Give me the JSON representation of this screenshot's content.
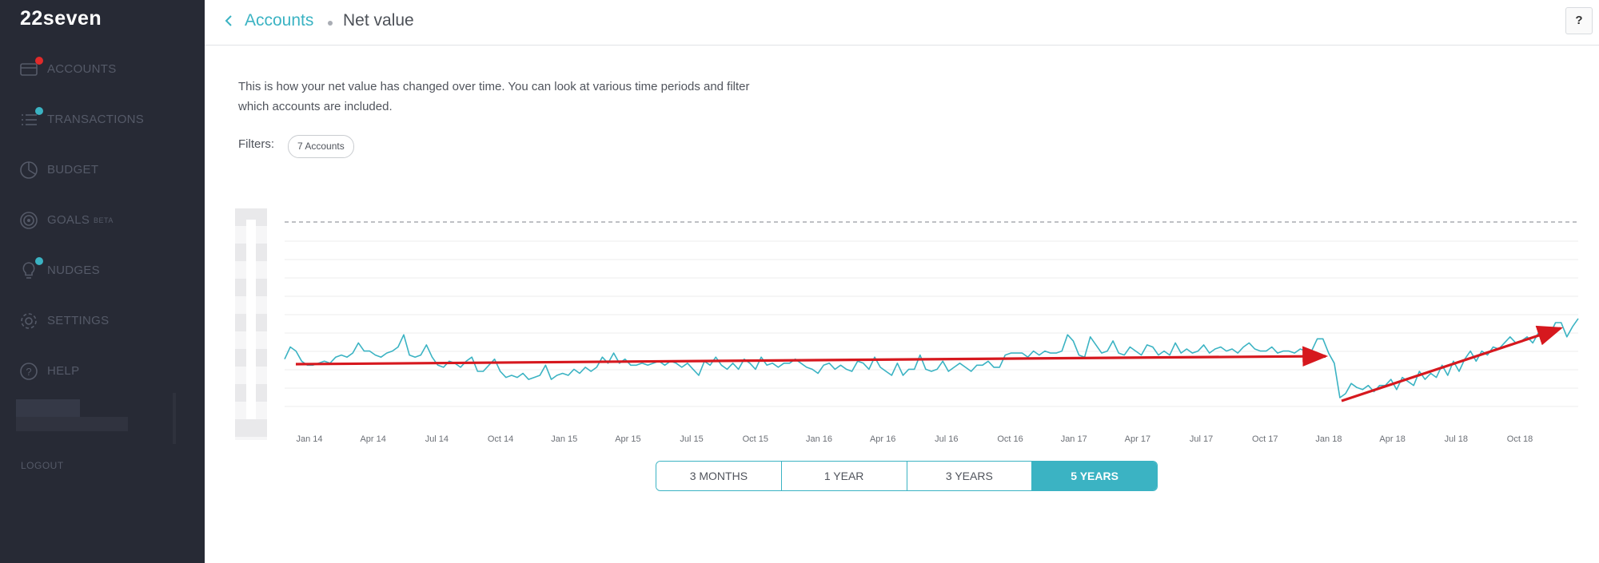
{
  "app": {
    "name": "22seven"
  },
  "sidebar": {
    "items": [
      {
        "label": "ACCOUNTS",
        "icon": "card-icon",
        "badge": "#e02a2a"
      },
      {
        "label": "TRANSACTIONS",
        "icon": "list-icon",
        "badge": "#3bb3c3"
      },
      {
        "label": "BUDGET",
        "icon": "pie-icon",
        "badge": ""
      },
      {
        "label": "GOALS",
        "icon": "target-icon",
        "badge": "",
        "tag": "BETA"
      },
      {
        "label": "NUDGES",
        "icon": "lightbulb-icon",
        "badge": "#3bb3c3"
      },
      {
        "label": "SETTINGS",
        "icon": "gear-icon",
        "badge": ""
      },
      {
        "label": "HELP",
        "icon": "question-icon",
        "badge": ""
      }
    ],
    "logout": "LOGOUT"
  },
  "header": {
    "breadcrumb_parent": "Accounts",
    "title": "Net value",
    "help_label": "?"
  },
  "main": {
    "description": "This is how your net value has changed over time. You can look at various time periods and filter which accounts are included.",
    "filters_label": "Filters:",
    "filter_chip": "7 Accounts",
    "range_options": [
      "3 MONTHS",
      "1 YEAR",
      "3 YEARS",
      "5 YEARS"
    ],
    "range_selected": "5 YEARS"
  },
  "colors": {
    "accent": "#3bb3c3",
    "sidebar_bg": "#272a35",
    "annotation_arrow": "#d6181e"
  },
  "chart_data": {
    "type": "line",
    "title": "",
    "xlabel": "",
    "ylabel": "",
    "x_ticks": [
      "Jan 14",
      "Apr 14",
      "Jul 14",
      "Oct 14",
      "Jan 15",
      "Apr 15",
      "Jul 15",
      "Oct 15",
      "Jan 16",
      "Apr 16",
      "Jul 16",
      "Oct 16",
      "Jan 17",
      "Apr 17",
      "Jul 17",
      "Oct 17",
      "Jan 18",
      "Apr 18",
      "Jul 18",
      "Oct 18"
    ],
    "y_axis_labels_visible": false,
    "grid": true,
    "reference_line": "dashed",
    "series": [
      {
        "values": [
          0.32,
          0.38,
          0.36,
          0.31,
          0.29,
          0.29,
          0.3,
          0.31,
          0.3,
          0.33,
          0.34,
          0.33,
          0.35,
          0.4,
          0.36,
          0.36,
          0.34,
          0.33,
          0.35,
          0.36,
          0.38,
          0.44,
          0.34,
          0.33,
          0.34,
          0.39,
          0.33,
          0.29,
          0.28,
          0.31,
          0.3,
          0.28,
          0.31,
          0.33,
          0.26,
          0.26,
          0.29,
          0.32,
          0.26,
          0.23,
          0.24,
          0.23,
          0.25,
          0.22,
          0.23,
          0.24,
          0.29,
          0.22,
          0.24,
          0.25,
          0.24,
          0.27,
          0.25,
          0.28,
          0.26,
          0.28,
          0.33,
          0.3,
          0.35,
          0.3,
          0.32,
          0.29,
          0.29,
          0.3,
          0.29,
          0.3,
          0.31,
          0.29,
          0.31,
          0.3,
          0.28,
          0.3,
          0.27,
          0.24,
          0.31,
          0.29,
          0.33,
          0.29,
          0.27,
          0.3,
          0.27,
          0.32,
          0.3,
          0.27,
          0.33,
          0.29,
          0.3,
          0.28,
          0.3,
          0.3,
          0.32,
          0.3,
          0.28,
          0.27,
          0.25,
          0.29,
          0.3,
          0.27,
          0.29,
          0.27,
          0.26,
          0.31,
          0.3,
          0.27,
          0.33,
          0.28,
          0.26,
          0.24,
          0.3,
          0.24,
          0.27,
          0.27,
          0.34,
          0.27,
          0.26,
          0.27,
          0.31,
          0.26,
          0.28,
          0.3,
          0.28,
          0.26,
          0.29,
          0.29,
          0.31,
          0.28,
          0.28,
          0.34,
          0.35,
          0.35,
          0.35,
          0.33,
          0.36,
          0.34,
          0.36,
          0.35,
          0.35,
          0.36,
          0.44,
          0.41,
          0.34,
          0.33,
          0.43,
          0.39,
          0.35,
          0.36,
          0.41,
          0.35,
          0.34,
          0.38,
          0.36,
          0.34,
          0.39,
          0.38,
          0.34,
          0.36,
          0.34,
          0.4,
          0.35,
          0.37,
          0.35,
          0.36,
          0.39,
          0.35,
          0.37,
          0.38,
          0.36,
          0.37,
          0.35,
          0.38,
          0.4,
          0.37,
          0.36,
          0.36,
          0.38,
          0.35,
          0.36,
          0.36,
          0.35,
          0.37,
          0.36,
          0.36,
          0.42,
          0.42,
          0.35,
          0.3,
          0.13,
          0.15,
          0.2,
          0.18,
          0.17,
          0.19,
          0.16,
          0.19,
          0.19,
          0.22,
          0.17,
          0.23,
          0.21,
          0.19,
          0.26,
          0.22,
          0.25,
          0.23,
          0.29,
          0.24,
          0.31,
          0.26,
          0.32,
          0.36,
          0.31,
          0.36,
          0.34,
          0.38,
          0.37,
          0.4,
          0.43,
          0.4,
          0.41,
          0.43,
          0.4,
          0.45,
          0.44,
          0.44,
          0.5,
          0.5,
          0.43,
          0.48,
          0.52
        ],
        "color": "#3bb3c3"
      }
    ],
    "annotations": [
      {
        "type": "arrow",
        "color": "#d6181e",
        "from": "Jan 14",
        "to": "Jan 18",
        "trend": "flat"
      },
      {
        "type": "arrow",
        "color": "#d6181e",
        "from": "Jan 18",
        "to": "Oct 18",
        "trend": "rising"
      }
    ]
  }
}
